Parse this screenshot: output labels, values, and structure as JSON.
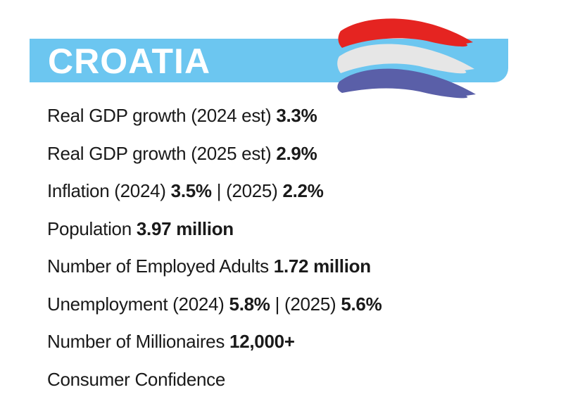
{
  "header": {
    "title": "CROATIA"
  },
  "rows": [
    {
      "parts": [
        {
          "text": "Real GDP growth (2024 est)",
          "strong": false
        },
        {
          "text": "3.3%",
          "strong": true
        }
      ]
    },
    {
      "parts": [
        {
          "text": "Real GDP growth (2025 est)",
          "strong": false
        },
        {
          "text": "2.9%",
          "strong": true
        }
      ]
    },
    {
      "parts": [
        {
          "text": "Inflation (2024)",
          "strong": false
        },
        {
          "text": "3.5%",
          "strong": true
        },
        {
          "text": "| (2025)",
          "strong": false
        },
        {
          "text": "2.2%",
          "strong": true
        }
      ]
    },
    {
      "parts": [
        {
          "text": "Population",
          "strong": false
        },
        {
          "text": "3.97 million",
          "strong": true
        }
      ]
    },
    {
      "parts": [
        {
          "text": "Number of Employed Adults",
          "strong": false
        },
        {
          "text": "1.72 million",
          "strong": true
        }
      ]
    },
    {
      "parts": [
        {
          "text": "Unemployment (2024)",
          "strong": false
        },
        {
          "text": "5.8%",
          "strong": true
        },
        {
          "text": "| (2025)",
          "strong": false
        },
        {
          "text": "5.6%",
          "strong": true
        }
      ]
    },
    {
      "parts": [
        {
          "text": "Number of Millionaires",
          "strong": false
        },
        {
          "text": "12,000+",
          "strong": true
        }
      ]
    },
    {
      "parts": [
        {
          "text": "Consumer Confidence",
          "strong": false
        }
      ]
    }
  ]
}
